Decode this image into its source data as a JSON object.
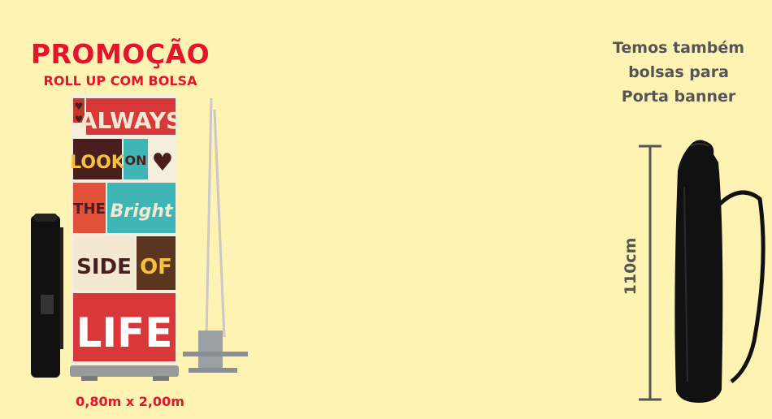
{
  "promo": {
    "title": "PROMOÇÃO",
    "subtitle": "ROLL UP COM BOLSA",
    "size": "0,80m x 2,00m"
  },
  "banner_art": {
    "words": [
      "ALWAYS",
      "LOOK",
      "ON",
      "THE",
      "Bright",
      "SIDE",
      "OF",
      "LIFE"
    ]
  },
  "bags": {
    "lines": [
      "Temos também",
      "bolsas para",
      "Porta banner"
    ],
    "height_label": "110cm"
  },
  "colors": {
    "background": "#fff3b3",
    "accent_red": "#e3142c",
    "text_gray": "#555555"
  }
}
